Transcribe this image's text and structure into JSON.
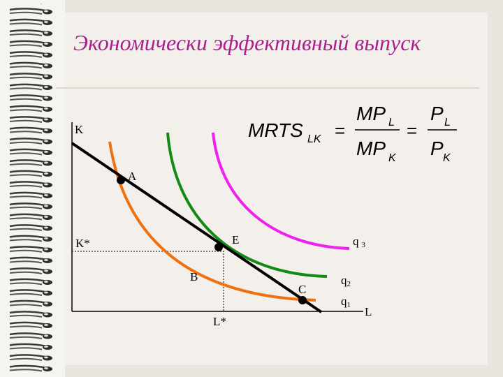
{
  "title": "Экономически эффективный выпуск",
  "formula": {
    "mrts": "MRTS",
    "mrts_sub": "LK",
    "equals": "=",
    "mp": "MP",
    "p": "P",
    "sub_l": "L",
    "sub_k": "K"
  },
  "axes": {
    "y": "K",
    "x": "L"
  },
  "levels": {
    "k_star": "K*",
    "l_star": "L*"
  },
  "points": {
    "a": "A",
    "e": "E",
    "b": "B",
    "c": "C"
  },
  "isoquants": [
    {
      "name": "q",
      "sub": "3"
    },
    {
      "name": "q",
      "sub": "2"
    },
    {
      "name": "q",
      "sub": "1"
    }
  ]
}
